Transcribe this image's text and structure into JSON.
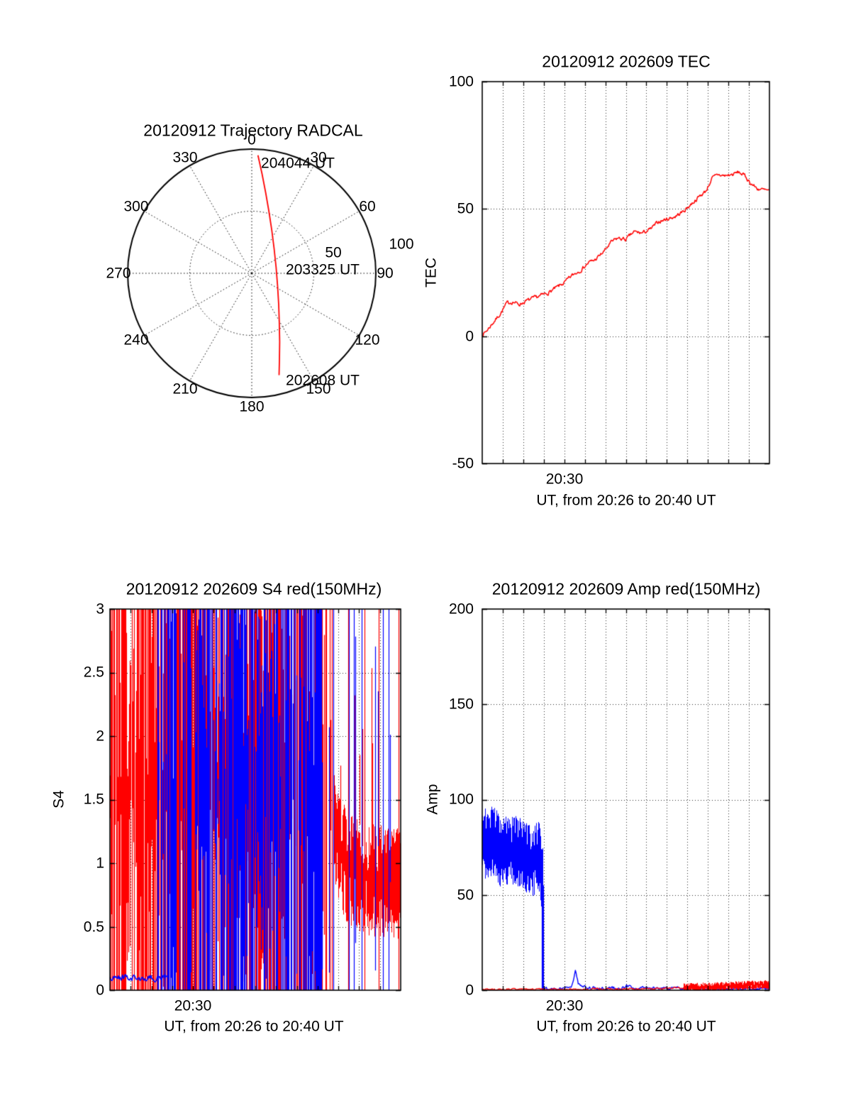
{
  "figure": {
    "background": "#ffffff",
    "text_color": "#000000",
    "red": "#ff0000",
    "blue": "#0000ff"
  },
  "chart_data": [
    {
      "type": "polar-trajectory",
      "title": "20120912 Trajectory RADCAL",
      "angle_ticks": [
        "0",
        "30",
        "60",
        "90",
        "120",
        "150",
        "180",
        "210",
        "240",
        "270",
        "300",
        "330"
      ],
      "radial_ticks": [
        "50",
        "100"
      ],
      "rlim": [
        0,
        100
      ],
      "grid": "dotted",
      "trajectory_color": "#ff0000",
      "annotations": [
        {
          "text": "204044 UT",
          "x": 37,
          "y": 89
        },
        {
          "text": "203325 UT",
          "x": 57,
          "y": 3
        },
        {
          "text": "202608 UT",
          "x": 57,
          "y": -86
        }
      ],
      "trajectory_xy": [
        [
          5,
          95
        ],
        [
          8.3,
          80
        ],
        [
          11.2,
          65
        ],
        [
          13.8,
          50
        ],
        [
          16.1,
          35
        ],
        [
          18,
          20
        ],
        [
          19.6,
          5
        ],
        [
          20.8,
          -10
        ],
        [
          21.7,
          -25
        ],
        [
          22.2,
          -40
        ],
        [
          22.5,
          -55
        ],
        [
          22.3,
          -70
        ],
        [
          22,
          -82
        ]
      ]
    },
    {
      "type": "line",
      "title": "20120912 202609 TEC",
      "xlabel": "UT, from 20:26 to 20:40 UT",
      "ylabel": "TEC",
      "xlim_minutes": [
        26,
        40
      ],
      "xtick_minutes": [
        30
      ],
      "xtick_labels": [
        "20:30"
      ],
      "ylim": [
        -50,
        100
      ],
      "yticks": [
        "100",
        "50",
        "0",
        "-50"
      ],
      "ytick_values": [
        100,
        50,
        0,
        -50
      ],
      "grid": "dotted",
      "series": [
        {
          "name": "TEC",
          "color": "#ff0000",
          "layers": [
            {
              "mode": "trace",
              "spread": 0.9,
              "lw": 1.5,
              "points": [
                [
                  26,
                  0.5
                ],
                [
                  26.2,
                  2
                ],
                [
                  26.5,
                  5
                ],
                [
                  26.9,
                  9
                ],
                [
                  27.2,
                  13
                ],
                [
                  27.5,
                  13.5
                ],
                [
                  27.8,
                  12.5
                ],
                [
                  28.2,
                  14
                ],
                [
                  28.7,
                  15.5
                ],
                [
                  29.2,
                  17
                ],
                [
                  29.6,
                  19
                ],
                [
                  30,
                  21
                ],
                [
                  30.4,
                  24
                ],
                [
                  30.8,
                  26
                ],
                [
                  31.2,
                  29
                ],
                [
                  31.5,
                  30
                ],
                [
                  31.9,
                  33
                ],
                [
                  32.3,
                  37
                ],
                [
                  32.6,
                  38.5
                ],
                [
                  33,
                  38
                ],
                [
                  33.4,
                  41
                ],
                [
                  33.8,
                  40.5
                ],
                [
                  34.2,
                  42
                ],
                [
                  34.6,
                  45
                ],
                [
                  35,
                  46
                ],
                [
                  35.4,
                  47
                ],
                [
                  35.8,
                  49
                ],
                [
                  36.2,
                  52
                ],
                [
                  36.6,
                  55
                ],
                [
                  36.9,
                  57
                ],
                [
                  37.2,
                  62
                ],
                [
                  37.5,
                  63.5
                ],
                [
                  37.8,
                  63
                ],
                [
                  38.2,
                  63.5
                ],
                [
                  38.5,
                  64.5
                ],
                [
                  38.8,
                  63
                ],
                [
                  39.1,
                  60
                ],
                [
                  39.4,
                  58
                ],
                [
                  39.7,
                  57.5
                ],
                [
                  40,
                  57
                ]
              ]
            }
          ]
        }
      ]
    },
    {
      "type": "scintillation",
      "title": "20120912 202609 S4 red(150MHz)",
      "xlabel": "UT, from 20:26 to 20:40 UT",
      "ylabel": "S4",
      "xlim_minutes": [
        26,
        40
      ],
      "xtick_minutes": [
        30
      ],
      "xtick_labels": [
        "20:30"
      ],
      "ylim": [
        0,
        3
      ],
      "yticks": [
        "3",
        "2.5",
        "2",
        "1.5",
        "1",
        "0.5",
        "0"
      ],
      "ytick_values": [
        3,
        2.5,
        2,
        1.5,
        1,
        0.5,
        0
      ],
      "grid": "dotted",
      "series": [
        {
          "name": "red-150MHz",
          "color": "#ff0000",
          "layers": [
            {
              "mode": "spikes",
              "t0": 26.0,
              "t1": 33.2,
              "density": 0.92,
              "lo": 0,
              "hi": 3
            },
            {
              "mode": "spikes",
              "t0": 33.2,
              "t1": 35.6,
              "density": 0.75,
              "lo": 0,
              "hi": 3
            },
            {
              "mode": "spikes",
              "t0": 35.6,
              "t1": 36.8,
              "density": 0.45,
              "lo": 0,
              "hi": 3
            },
            {
              "mode": "spikes",
              "t0": 36.8,
              "t1": 40.0,
              "density": 0.07,
              "lo": 0,
              "hi": 3
            },
            {
              "mode": "band",
              "spread": 0.45,
              "points": [
                [
                  36.8,
                  1.25
                ],
                [
                  37.3,
                  1.0
                ],
                [
                  38,
                  0.9
                ],
                [
                  39,
                  0.85
                ],
                [
                  40,
                  0.82
                ]
              ]
            }
          ]
        },
        {
          "name": "blue",
          "color": "#0000ff",
          "layers": [
            {
              "mode": "trace",
              "spread": 0.03,
              "lw": 1.6,
              "points": [
                [
                  26,
                  0.09
                ],
                [
                  26.8,
                  0.1
                ],
                [
                  27.6,
                  0.09
                ],
                [
                  28.8,
                  0.1
                ]
              ]
            },
            {
              "mode": "spikes",
              "t0": 28.3,
              "t1": 30.5,
              "density": 0.65,
              "lo": 0,
              "hi": 3
            },
            {
              "mode": "spikes",
              "t0": 30.5,
              "t1": 36.2,
              "density": 0.85,
              "lo": 0,
              "hi": 3
            },
            {
              "mode": "spikes",
              "t0": 36.2,
              "t1": 39.9,
              "density": 0.11,
              "lo": 0,
              "hi": 3
            }
          ]
        }
      ]
    },
    {
      "type": "scintillation",
      "title": "20120912 202609 Amp red(150MHz)",
      "xlabel": "UT, from 20:26 to 20:40 UT",
      "ylabel": "Amp",
      "xlim_minutes": [
        26,
        40
      ],
      "xtick_minutes": [
        30
      ],
      "xtick_labels": [
        "20:30"
      ],
      "ylim": [
        0,
        200
      ],
      "yticks": [
        "200",
        "150",
        "100",
        "50",
        "0"
      ],
      "ytick_values": [
        200,
        150,
        100,
        50,
        0
      ],
      "grid": "dotted",
      "series": [
        {
          "name": "blue",
          "color": "#0000ff",
          "layers": [
            {
              "mode": "band",
              "spread": 19,
              "lines": 3,
              "points": [
                [
                  26,
                  76
                ],
                [
                  26.4,
                  79
                ],
                [
                  26.9,
                  73
                ],
                [
                  27.4,
                  75
                ],
                [
                  27.9,
                  71
                ],
                [
                  28.4,
                  67
                ],
                [
                  28.75,
                  70
                ],
                [
                  28.95,
                  58
                ]
              ]
            },
            {
              "mode": "spikes",
              "t0": 28.9,
              "t1": 29.0,
              "density": 1,
              "lo": 0,
              "hi": 55
            },
            {
              "mode": "trace",
              "spread": 1.0,
              "points": [
                [
                  28.95,
                  1
                ],
                [
                  30.3,
                  1
                ],
                [
                  30.45,
                  5
                ],
                [
                  30.55,
                  11
                ],
                [
                  30.68,
                  4
                ],
                [
                  30.85,
                  1.5
                ],
                [
                  32.9,
                  1
                ],
                [
                  33.05,
                  2.5
                ],
                [
                  33.25,
                  1
                ],
                [
                  35,
                  0.9
                ],
                [
                  37.5,
                  0.8
                ],
                [
                  40,
                  0.8
                ]
              ]
            }
          ]
        },
        {
          "name": "red",
          "color": "#ff0000",
          "layers": [
            {
              "mode": "trace",
              "spread": 0.5,
              "points": [
                [
                  26,
                  0.5
                ],
                [
                  31,
                  0.5
                ],
                [
                  33,
                  0.6
                ],
                [
                  34.5,
                  0.9
                ],
                [
                  36,
                  1.3
                ],
                [
                  40,
                  1.6
                ]
              ]
            },
            {
              "mode": "band",
              "spread": 2.4,
              "points": [
                [
                  35.8,
                  1.2
                ],
                [
                  37.5,
                  2.0
                ],
                [
                  39,
                  2.6
                ],
                [
                  40,
                  3.0
                ]
              ]
            }
          ]
        }
      ]
    }
  ]
}
